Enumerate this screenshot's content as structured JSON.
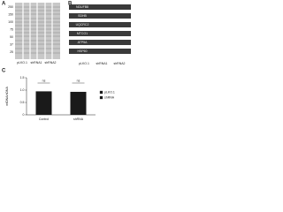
{
  "panels": {
    "a": {
      "letter": "A",
      "markers": [
        "250",
        "150",
        "100",
        "75",
        "50",
        "37",
        "25"
      ],
      "lanes": [
        "pLKO.1",
        "shRNA1",
        "shRNA2"
      ]
    },
    "b": {
      "letter": "B",
      "bands": [
        "NDUFB8",
        "SDHB",
        "UQCRC2",
        "MTCO1",
        "ATP5A",
        "HSP60"
      ],
      "lanes": [
        "pLKO.1",
        "shRNA1",
        "shRNA2"
      ]
    }
  },
  "chart_data": {
    "type": "bar",
    "letter": "C",
    "y_label": "mtDNA/nDNA",
    "categories": [
      "Control",
      "shRNA"
    ],
    "series": [
      {
        "name": "pLKO.1",
        "color": "#1a1a1a",
        "values": [
          0.95,
          null
        ]
      },
      {
        "name": "shRNA",
        "color": "#1a1a1a",
        "values": [
          null,
          0.93
        ]
      }
    ],
    "annotations": [
      "ns",
      "ns"
    ],
    "ylim": [
      0,
      1.5
    ],
    "yticks": [
      0,
      0.5,
      {
        "value": 1,
        "label": "1.0"
      },
      1.5
    ]
  }
}
